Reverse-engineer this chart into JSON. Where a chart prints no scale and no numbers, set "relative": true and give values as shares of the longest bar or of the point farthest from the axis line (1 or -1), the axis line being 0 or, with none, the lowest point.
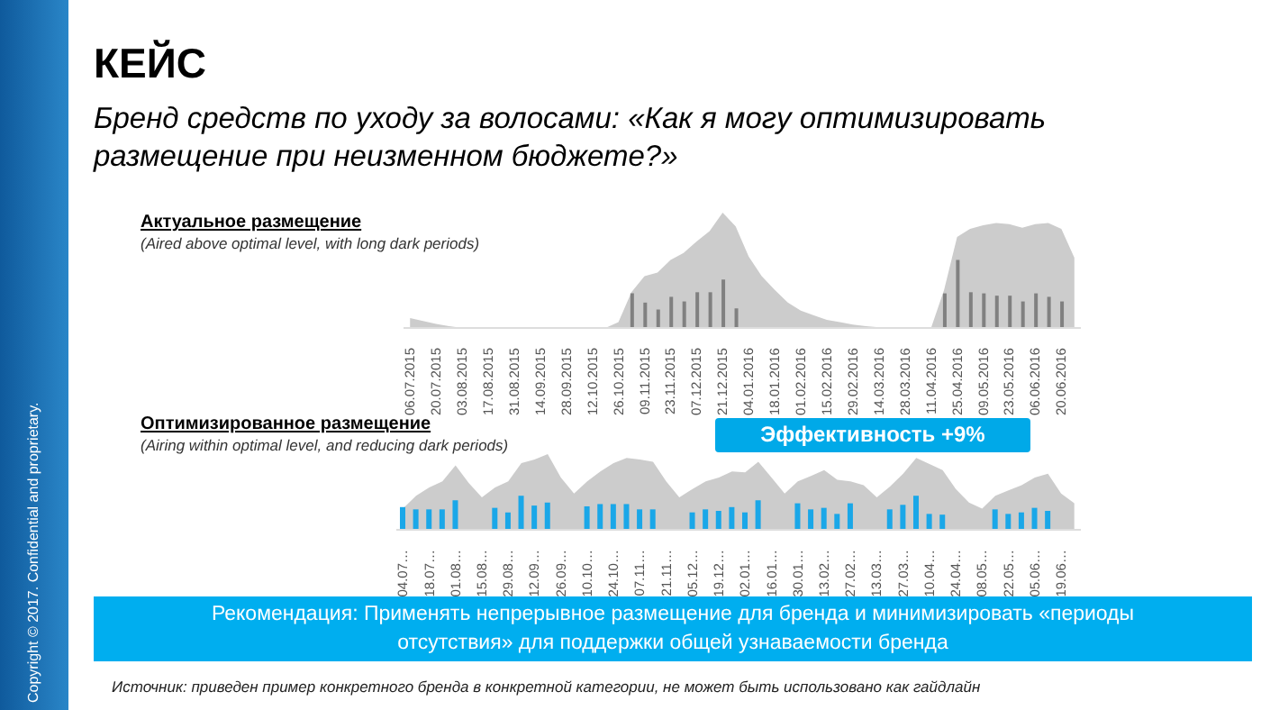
{
  "chart_data": [
    {
      "type": "area",
      "title": "Актуальное  размещение",
      "subtitle": "(Aired above optimal level, with  long dark periods)",
      "annotations": [
        "КЕЙС",
        "Бренд средств по уходу за волосами: «Как я могу оптимизировать размещение  при неизменном  бюджете?»"
      ],
      "categories": [
        "06.07.2015",
        null,
        "20.07.2015",
        null,
        "03.08.2015",
        null,
        "17.08.2015",
        null,
        "31.08.2015",
        null,
        "14.09.2015",
        null,
        "28.09.2015",
        null,
        "12.10.2015",
        null,
        "26.10.2015",
        null,
        "09.11.2015",
        null,
        "23.11.2015",
        null,
        "07.12.2015",
        null,
        "21.12.2015",
        null,
        "04.01.2016",
        null,
        "18.01.2016",
        null,
        "01.02.2016",
        null,
        "15.02.2016",
        null,
        "29.02.2016",
        null,
        "14.03.2016",
        null,
        "28.03.2016",
        null,
        "11.04.2016",
        null,
        "25.04.2016",
        null,
        "09.05.2016",
        null,
        "23.05.2016",
        null,
        "06.06.2016",
        null,
        "20.06.2016",
        null
      ],
      "relative": true,
      "tick_labels": "x",
      "series": [
        {
          "color": "#cccccc",
          "values": [
            0.085,
            0.06,
            0.035,
            0.015,
            0,
            0,
            0,
            0,
            0,
            0,
            0,
            0,
            0,
            0,
            0,
            0,
            0.05,
            0.31,
            0.45,
            0.48,
            0.59,
            0.65,
            0.75,
            0.84,
            1,
            0.88,
            0.62,
            0.45,
            0.33,
            0.22,
            0.15,
            0.11,
            0.07,
            0.05,
            0.03,
            0.015,
            0.005,
            0,
            0,
            0,
            0,
            0.33,
            0.79,
            0.86,
            0.89,
            0.91,
            0.9,
            0.87,
            0.9,
            0.91,
            0.86,
            0.61
          ]
        },
        {
          "type": "bar",
          "color": "#808080",
          "values": [
            null,
            null,
            null,
            null,
            null,
            null,
            null,
            null,
            null,
            null,
            null,
            null,
            null,
            null,
            null,
            null,
            null,
            0.3,
            0.22,
            0.16,
            0.27,
            0.23,
            0.31,
            0.31,
            0.42,
            0.17,
            null,
            null,
            null,
            null,
            null,
            null,
            null,
            null,
            null,
            null,
            null,
            null,
            null,
            null,
            null,
            0.3,
            0.59,
            0.31,
            0.3,
            0.28,
            0.28,
            0.23,
            0.3,
            0.27,
            0.23,
            null
          ]
        }
      ]
    },
    {
      "type": "area",
      "title": "Оптимизированное  размещение",
      "subtitle": "(Airing within optimal level, and reducing dark periods)",
      "annotations": [
        "Эффективность +9%",
        "Рекомендация: Применять непрерывное размещение для бренда и минимизировать «периоды отсутствия» для поддержки общей узнаваемости бренда",
        "Источник: приведен  пример  конкретного  бренда  в конкретной  категории,  не может быть использовано  как гайдлайн",
        "Copyright © 2017. Confidential and proprietary."
      ],
      "categories": [
        "04.07…",
        null,
        "18.07…",
        null,
        "01.08…",
        null,
        "15.08…",
        null,
        "29.08…",
        null,
        "12.09…",
        null,
        "26.09…",
        null,
        "10.10…",
        null,
        "24.10…",
        null,
        "07.11…",
        null,
        "21.11…",
        null,
        "05.12…",
        null,
        "19.12…",
        null,
        "02.01…",
        null,
        "16.01…",
        null,
        "30.01…",
        null,
        "13.02…",
        null,
        "27.02…",
        null,
        "13.03…",
        null,
        "27.03…",
        null,
        "10.04…",
        null,
        "24.04…",
        null,
        "08.05…",
        null,
        "22.05…",
        null,
        "05.06…",
        null,
        "19.06…",
        null
      ],
      "relative": true,
      "tick_labels": "x",
      "series": [
        {
          "color": "#cccccc",
          "values": [
            0.28,
            0.45,
            0.56,
            0.64,
            0.85,
            0.62,
            0.43,
            0.56,
            0.64,
            0.88,
            0.93,
            1,
            0.69,
            0.48,
            0.64,
            0.77,
            0.88,
            0.95,
            0.93,
            0.9,
            0.64,
            0.43,
            0.54,
            0.64,
            0.69,
            0.77,
            0.76,
            0.9,
            0.69,
            0.48,
            0.64,
            0.71,
            0.79,
            0.66,
            0.64,
            0.59,
            0.43,
            0.57,
            0.74,
            0.95,
            0.87,
            0.79,
            0.54,
            0.36,
            0.28,
            0.45,
            0.52,
            0.59,
            0.69,
            0.74,
            0.48,
            0.35
          ]
        },
        {
          "type": "bar",
          "color": "#1aa7e8",
          "values": [
            0.3,
            0.27,
            0.27,
            0.27,
            0.39,
            null,
            null,
            0.29,
            0.23,
            0.45,
            0.32,
            0.36,
            null,
            null,
            0.31,
            0.34,
            0.34,
            0.34,
            0.27,
            0.27,
            null,
            null,
            0.23,
            0.27,
            0.25,
            0.3,
            0.23,
            0.39,
            null,
            null,
            0.35,
            0.27,
            0.29,
            0.21,
            0.35,
            null,
            null,
            0.27,
            0.33,
            0.45,
            0.21,
            0.2,
            null,
            null,
            null,
            0.27,
            0.21,
            0.23,
            0.29,
            0.25,
            null,
            null
          ]
        }
      ]
    }
  ]
}
